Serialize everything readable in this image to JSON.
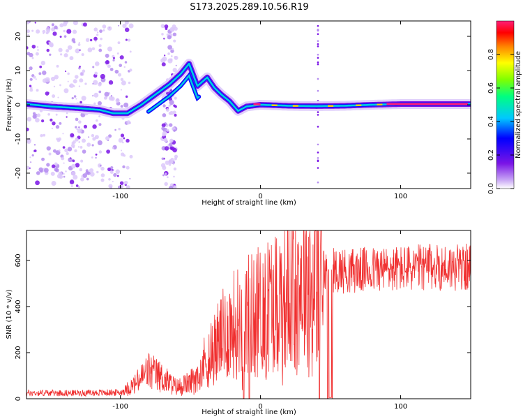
{
  "title": "S173.2025.289.10.56.R19",
  "chart_data": [
    {
      "type": "heatmap",
      "name": "spectrogram",
      "xlabel": "Height of straight line (km)",
      "ylabel": "Frequency (Hz)",
      "xlim": [
        -167,
        150
      ],
      "ylim": [
        -24.5,
        24.5
      ],
      "xticks": [
        -100,
        0,
        100
      ],
      "yticks": [
        -20,
        -10,
        0,
        10,
        20
      ],
      "ridge": [
        {
          "x": -167,
          "y": 0.2
        },
        {
          "x": -150,
          "y": -0.5
        },
        {
          "x": -130,
          "y": -1.0
        },
        {
          "x": -115,
          "y": -1.5
        },
        {
          "x": -105,
          "y": -2.5
        },
        {
          "x": -95,
          "y": -2.5
        },
        {
          "x": -85,
          "y": 0
        },
        {
          "x": -75,
          "y": 3
        },
        {
          "x": -65,
          "y": 6
        },
        {
          "x": -57,
          "y": 9
        },
        {
          "x": -51,
          "y": 12
        },
        {
          "x": -45,
          "y": 5.5
        },
        {
          "x": -38,
          "y": 8
        },
        {
          "x": -33,
          "y": 5
        },
        {
          "x": -28,
          "y": 3
        },
        {
          "x": -22,
          "y": 1
        },
        {
          "x": -16,
          "y": -1.8
        },
        {
          "x": -10,
          "y": -0.5
        },
        {
          "x": 0,
          "y": 0
        },
        {
          "x": 20,
          "y": -0.3
        },
        {
          "x": 40,
          "y": -0.4
        },
        {
          "x": 60,
          "y": -0.3
        },
        {
          "x": 80,
          "y": 0
        },
        {
          "x": 100,
          "y": 0.2
        },
        {
          "x": 150,
          "y": 0.2
        }
      ],
      "colorbar": {
        "label": "Normalized spectral amplitude",
        "ticks": [
          "0.0",
          "0.2",
          "0.4",
          "0.6",
          "0.8"
        ],
        "range": [
          0,
          1
        ]
      }
    },
    {
      "type": "line",
      "name": "snr",
      "xlabel": "Height of straight line (km)",
      "ylabel": "SNR (10 * v/v)",
      "xlim": [
        -167,
        150
      ],
      "ylim": [
        0,
        730
      ],
      "xticks": [
        -100,
        0,
        100
      ],
      "yticks": [
        0,
        200,
        400,
        600
      ],
      "color": "#f03030",
      "envelope": [
        {
          "x": -167,
          "y": 25
        },
        {
          "x": -130,
          "y": 25
        },
        {
          "x": -100,
          "y": 27
        },
        {
          "x": -90,
          "y": 60
        },
        {
          "x": -80,
          "y": 120
        },
        {
          "x": -70,
          "y": 90
        },
        {
          "x": -60,
          "y": 50
        },
        {
          "x": -50,
          "y": 70
        },
        {
          "x": -40,
          "y": 160
        },
        {
          "x": -30,
          "y": 250
        },
        {
          "x": -20,
          "y": 320
        },
        {
          "x": -10,
          "y": 360
        },
        {
          "x": 0,
          "y": 390
        },
        {
          "x": 10,
          "y": 430
        },
        {
          "x": 20,
          "y": 470
        },
        {
          "x": 30,
          "y": 520
        },
        {
          "x": 40,
          "y": 550
        },
        {
          "x": 45,
          "y": 560
        },
        {
          "x": 52,
          "y": 560
        },
        {
          "x": 60,
          "y": 555
        },
        {
          "x": 80,
          "y": 560
        },
        {
          "x": 100,
          "y": 565
        },
        {
          "x": 120,
          "y": 570
        },
        {
          "x": 150,
          "y": 570
        }
      ],
      "dropouts_x": [
        -12,
        -8,
        42,
        48,
        49.5,
        51
      ]
    }
  ]
}
